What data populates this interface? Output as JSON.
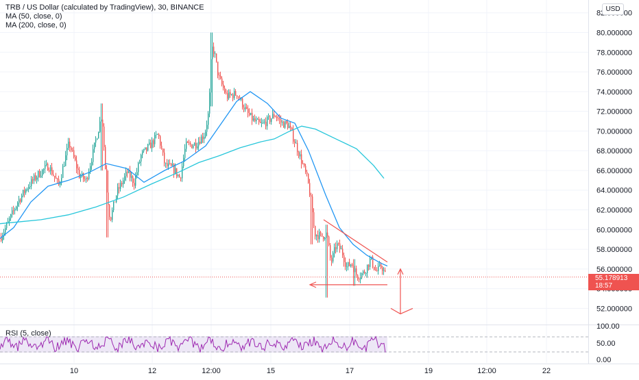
{
  "header": {
    "title": "TRB / US Dollar (calculated by TradingView), 30, BINANCE",
    "ma50": "MA (50, close, 0)",
    "ma200": "MA (200, close, 0)",
    "currency_button": "USD"
  },
  "price_tag": {
    "price": "55.178913",
    "countdown": "18:57"
  },
  "rsi": {
    "label": "RSI (5, close)",
    "ticks": [
      "100.00",
      "50.00",
      "0.00"
    ],
    "band": [
      30,
      70
    ]
  },
  "colors": {
    "up": "#26a69a",
    "down": "#ef5350",
    "ma50": "#2196f3",
    "ma200": "#26c6da",
    "rsi": "#9c27b0",
    "rsi_band": "#ede7f6",
    "annotation": "#ef5350",
    "grid": "#f0f3fa"
  },
  "chart_data": [
    {
      "type": "candlestick",
      "title": "TRB / US Dollar (calculated by TradingView), 30, BINANCE",
      "x_ticks": [
        "10",
        "12",
        "12:00",
        "15",
        "17",
        "19",
        "12:00",
        "22"
      ],
      "y_ticks": [
        "82.000000",
        "80.000000",
        "78.000000",
        "76.000000",
        "74.000000",
        "72.000000",
        "70.000000",
        "68.000000",
        "66.000000",
        "64.000000",
        "62.000000",
        "60.000000",
        "58.000000",
        "56.000000",
        "54.000000",
        "52.000000"
      ],
      "ylim": [
        50.5,
        83.3
      ],
      "last_price": 55.178913,
      "series": [
        {
          "name": "MA (50, close, 0)",
          "points": [
            [
              0,
              59.1
            ],
            [
              20,
              60.2
            ],
            [
              45,
              62.8
            ],
            [
              70,
              64.4
            ],
            [
              100,
              65.0
            ],
            [
              130,
              65.8
            ],
            [
              155,
              66.7
            ],
            [
              185,
              66.2
            ],
            [
              210,
              64.8
            ],
            [
              240,
              66.0
            ],
            [
              270,
              67.0
            ],
            [
              300,
              68.5
            ],
            [
              320,
              70.5
            ],
            [
              345,
              73.0
            ],
            [
              365,
              74.0
            ],
            [
              390,
              72.8
            ],
            [
              410,
              71.3
            ],
            [
              430,
              70.8
            ],
            [
              450,
              68.0
            ],
            [
              475,
              63.5
            ],
            [
              495,
              60.2
            ],
            [
              515,
              58.5
            ],
            [
              535,
              57.4
            ],
            [
              555,
              56.6
            ],
            [
              565,
              56.3
            ]
          ]
        },
        {
          "name": "MA (200, close, 0)",
          "points": [
            [
              0,
              60.6
            ],
            [
              30,
              60.8
            ],
            [
              60,
              61.0
            ],
            [
              100,
              61.5
            ],
            [
              140,
              62.3
            ],
            [
              180,
              63.3
            ],
            [
              220,
              64.6
            ],
            [
              260,
              65.8
            ],
            [
              290,
              66.8
            ],
            [
              320,
              67.5
            ],
            [
              350,
              68.3
            ],
            [
              380,
              68.9
            ],
            [
              400,
              69.2
            ],
            [
              420,
              69.9
            ],
            [
              440,
              70.5
            ],
            [
              460,
              70.2
            ],
            [
              490,
              69.2
            ],
            [
              520,
              68.2
            ],
            [
              545,
              66.5
            ],
            [
              560,
              65.2
            ]
          ]
        }
      ],
      "annotations": [
        {
          "type": "trendline",
          "from": [
            472,
            61.0
          ],
          "to": [
            565,
            56.7
          ]
        },
        {
          "type": "horizontal-arrow",
          "y": 54.4,
          "from": 452,
          "to": 565
        },
        {
          "type": "vertical-arrow",
          "x": 584,
          "from": 52.0,
          "to": 56.0
        }
      ]
    },
    {
      "type": "line",
      "title": "RSI (5, close)",
      "ylim": [
        0,
        100
      ],
      "series": [
        {
          "name": "RSI (5, close)"
        }
      ]
    }
  ]
}
